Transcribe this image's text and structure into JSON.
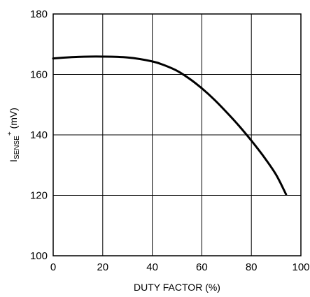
{
  "chart_data": {
    "type": "line",
    "xlabel": "DUTY FACTOR (%)",
    "ylabel": {
      "base": "I",
      "subscript": "SENSE",
      "superscript": "+",
      "suffix": " (mV)"
    },
    "xlim": [
      0,
      100
    ],
    "ylim": [
      100,
      180
    ],
    "xticks": [
      0,
      20,
      40,
      60,
      80,
      100
    ],
    "yticks": [
      100,
      120,
      140,
      160,
      180
    ],
    "grid": true,
    "series": [
      {
        "x": [
          0,
          10,
          20,
          30,
          40,
          45,
          50,
          55,
          60,
          65,
          70,
          75,
          80,
          85,
          90,
          94
        ],
        "y": [
          165.3,
          165.8,
          165.9,
          165.6,
          164.3,
          163.0,
          161.2,
          158.6,
          155.4,
          151.7,
          147.5,
          143.0,
          138.1,
          132.8,
          126.8,
          120.3
        ]
      }
    ]
  }
}
